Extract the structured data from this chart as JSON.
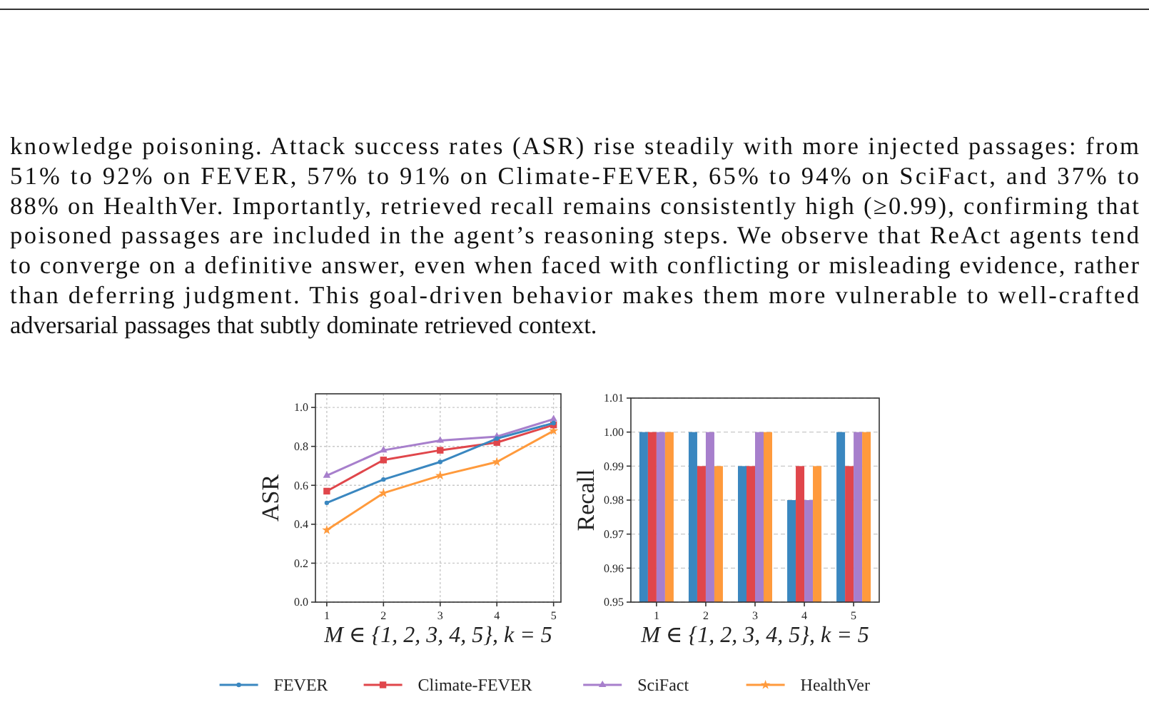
{
  "chart_data": [
    {
      "type": "line",
      "ylabel": "ASR",
      "xlabel": "M ∈ {1, 2, 3, 4, 5}, k = 5",
      "x": [
        1,
        2,
        3,
        4,
        5
      ],
      "xlim": [
        0.8,
        5.13
      ],
      "xticks": [
        1,
        2,
        3,
        4,
        5
      ],
      "ylim": [
        0,
        1.07
      ],
      "yticks": [
        {
          "value": 0,
          "label": "0.0"
        },
        {
          "value": 0.2,
          "label": "0.2"
        },
        {
          "value": 0.4,
          "label": "0.4"
        },
        {
          "value": 0.6,
          "label": "0.6"
        },
        {
          "value": 0.8,
          "label": "0.8"
        },
        {
          "value": 1,
          "label": "1.0"
        }
      ],
      "grid": true,
      "legend": "bottom",
      "line_style": "solid",
      "annotations": [
        "knowledge poisoning. Attack success rates (ASR) rise steadily with more injected passages: from",
        "51% to 92% on FEVER, 57% to 91% on Climate-FEVER, 65% to 94% on SciFact, and 37% to",
        "88% on HealthVer. Importantly, retrieved recall remains consistently high (≥0.99), confirming that",
        "poisoned passages are included in the agent’s reasoning steps. We observe that ReAct agents tend",
        "to converge on a definitive answer, even when faced with conflicting or misleading evidence, rather",
        "than deferring judgment. This goal-driven behavior makes them more vulnerable to well-crafted",
        "adversarial passages that subtly dominate retrieved context."
      ],
      "series": [
        {
          "name": "FEVER",
          "color": "#3a87c0",
          "marker": "circle",
          "values": [
            0.51,
            0.63,
            0.72,
            0.84,
            0.92
          ]
        },
        {
          "name": "Climate-FEVER",
          "color": "#e0464b",
          "marker": "square",
          "values": [
            0.57,
            0.73,
            0.78,
            0.82,
            0.91
          ]
        },
        {
          "name": "SciFact",
          "color": "#a77fcc",
          "marker": "triangle",
          "values": [
            0.65,
            0.78,
            0.83,
            0.85,
            0.94
          ]
        },
        {
          "name": "HealthVer",
          "color": "#ff9a3c",
          "marker": "star",
          "values": [
            0.37,
            0.56,
            0.65,
            0.72,
            0.88
          ]
        }
      ]
    },
    {
      "type": "bar",
      "ylabel": "Recall",
      "xlabel": "M ∈ {1, 2, 3, 4, 5}, k = 5",
      "categories": [
        "1",
        "2",
        "3",
        "4",
        "5"
      ],
      "ylim": [
        0.95,
        1.01
      ],
      "yticks": [
        {
          "value": 0.95,
          "label": "0.95"
        },
        {
          "value": 0.96,
          "label": "0.96"
        },
        {
          "value": 0.97,
          "label": "0.97"
        },
        {
          "value": 0.98,
          "label": "0.98"
        },
        {
          "value": 0.99,
          "label": "0.99"
        },
        {
          "value": 1,
          "label": "1.00"
        },
        {
          "value": 1.01,
          "label": "1.01"
        }
      ],
      "grid": "y",
      "series": [
        {
          "color": "#3a87c0",
          "values": [
            1,
            1,
            0.99,
            0.98,
            1
          ]
        },
        {
          "color": "#e0464b",
          "values": [
            1,
            0.99,
            0.99,
            0.99,
            0.99
          ]
        },
        {
          "color": "#a77fcc",
          "values": [
            1,
            1,
            1,
            0.98,
            1
          ]
        },
        {
          "color": "#ff9a3c",
          "values": [
            1,
            0.99,
            1,
            0.99,
            1
          ]
        }
      ]
    }
  ]
}
